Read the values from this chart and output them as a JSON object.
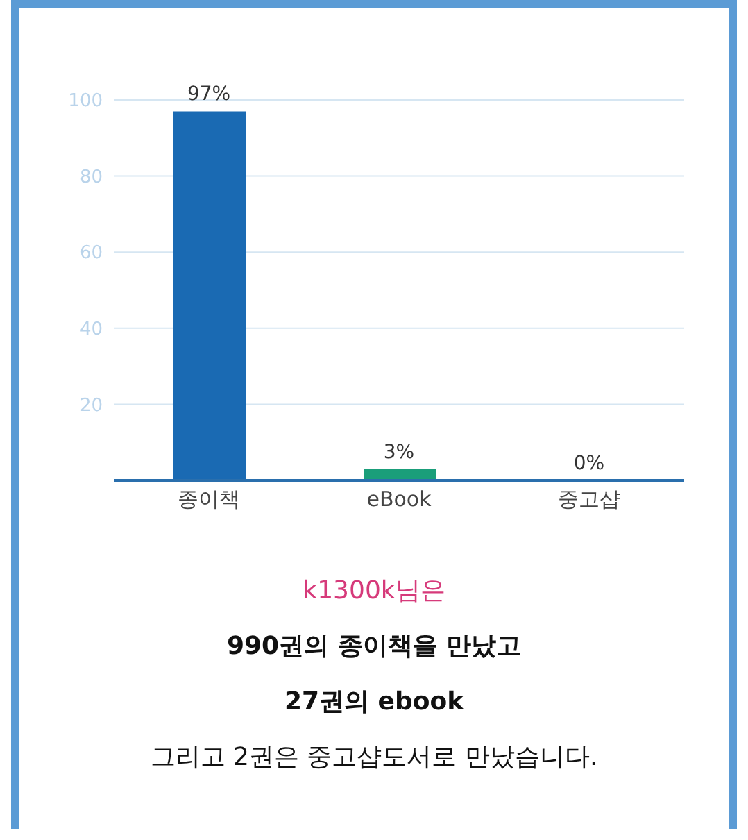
{
  "chart_data": {
    "type": "bar",
    "categories": [
      "종이책",
      "eBook",
      "중고샵"
    ],
    "values": [
      97,
      3,
      0
    ],
    "colors": [
      "#1a6ab3",
      "#1a9e7a",
      "#1a6ab3"
    ],
    "value_labels": [
      "97%",
      "3%",
      "0%"
    ],
    "ylim": [
      0,
      100
    ],
    "yticks": [
      20,
      40,
      60,
      80,
      100
    ],
    "grid": "y",
    "annotations": [
      "k1300k님은",
      "990권의 종이책을 만났고",
      "27권의 ebook",
      "그리고 2권은 중고샵도서로 만났습니다."
    ]
  }
}
